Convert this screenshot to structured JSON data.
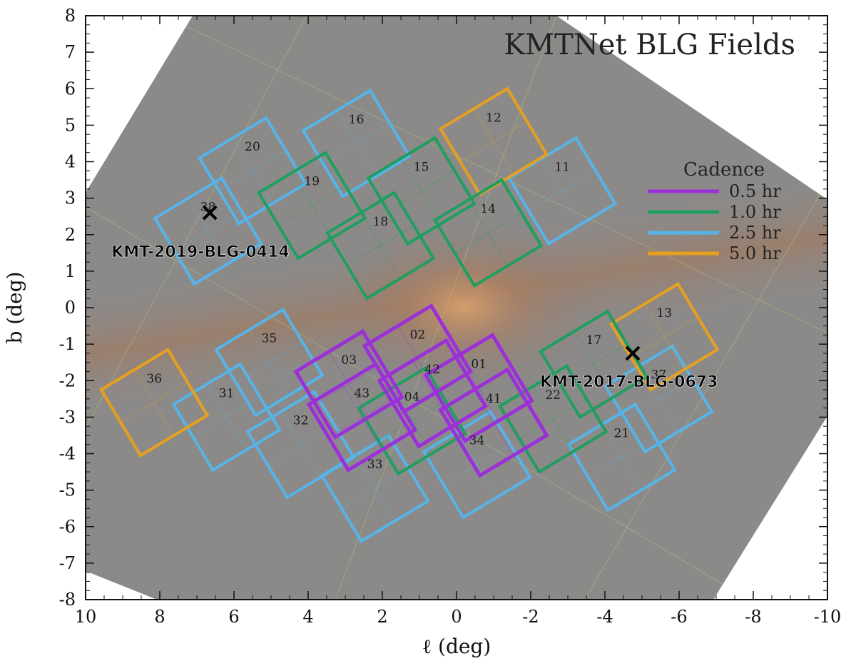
{
  "chart_data": {
    "type": "scatter",
    "title": "KMTNet BLG Fields",
    "xlabel": "ℓ (deg)",
    "ylabel": "b (deg)",
    "xlim": [
      10,
      -10
    ],
    "ylim": [
      -8,
      8
    ],
    "xticks": [
      "10",
      "8",
      "6",
      "4",
      "2",
      "0",
      "-2",
      "-4",
      "-6",
      "-8",
      "-10"
    ],
    "yticks": [
      "8",
      "7",
      "6",
      "5",
      "4",
      "3",
      "2",
      "1",
      "0",
      "-1",
      "-2",
      "-3",
      "-4",
      "-5",
      "-6",
      "-7",
      "-8"
    ],
    "legend": {
      "title": "Cadence",
      "placement": "right",
      "entries": [
        {
          "label": "0.5 hr",
          "color": "#9b30d9"
        },
        {
          "label": "1.0 hr",
          "color": "#1e9e5f"
        },
        {
          "label": "2.5 hr",
          "color": "#56b4e9"
        },
        {
          "label": "5.0 hr",
          "color": "#e6a020"
        }
      ]
    },
    "fields": [
      {
        "name": "01",
        "l": -0.6,
        "b": -2.2,
        "cadence": "0.5 hr"
      },
      {
        "name": "02",
        "l": 1.05,
        "b": -1.4,
        "cadence": "0.5 hr"
      },
      {
        "name": "03",
        "l": 2.9,
        "b": -2.1,
        "cadence": "0.5 hr"
      },
      {
        "name": "41",
        "l": -1.0,
        "b": -3.15,
        "cadence": "0.5 hr"
      },
      {
        "name": "42",
        "l": 0.65,
        "b": -2.35,
        "cadence": "0.5 hr"
      },
      {
        "name": "43",
        "l": 2.55,
        "b": -3.0,
        "cadence": "0.5 hr"
      },
      {
        "name": "04",
        "l": 1.2,
        "b": -3.1,
        "cadence": "1.0 hr"
      },
      {
        "name": "14",
        "l": -0.85,
        "b": 2.05,
        "cadence": "1.0 hr"
      },
      {
        "name": "15",
        "l": 0.95,
        "b": 3.2,
        "cadence": "1.0 hr"
      },
      {
        "name": "17",
        "l": -3.7,
        "b": -1.55,
        "cadence": "1.0 hr"
      },
      {
        "name": "18",
        "l": 2.05,
        "b": 1.7,
        "cadence": "1.0 hr"
      },
      {
        "name": "19",
        "l": 3.9,
        "b": 2.8,
        "cadence": "1.0 hr"
      },
      {
        "name": "22",
        "l": -2.6,
        "b": -3.05,
        "cadence": "1.0 hr"
      },
      {
        "name": "11",
        "l": -2.85,
        "b": 3.2,
        "cadence": "2.5 hr"
      },
      {
        "name": "16",
        "l": 2.7,
        "b": 4.5,
        "cadence": "2.5 hr"
      },
      {
        "name": "20",
        "l": 5.5,
        "b": 3.75,
        "cadence": "2.5 hr"
      },
      {
        "name": "21",
        "l": -4.45,
        "b": -4.1,
        "cadence": "2.5 hr"
      },
      {
        "name": "31",
        "l": 6.2,
        "b": -3.0,
        "cadence": "2.5 hr"
      },
      {
        "name": "32",
        "l": 4.2,
        "b": -3.75,
        "cadence": "2.5 hr"
      },
      {
        "name": "33",
        "l": 2.2,
        "b": -4.95,
        "cadence": "2.5 hr"
      },
      {
        "name": "34",
        "l": -0.55,
        "b": -4.3,
        "cadence": "2.5 hr"
      },
      {
        "name": "35",
        "l": 5.05,
        "b": -1.5,
        "cadence": "2.5 hr"
      },
      {
        "name": "37",
        "l": -5.45,
        "b": -2.5,
        "cadence": "2.5 hr"
      },
      {
        "name": "38",
        "l": 6.7,
        "b": 2.1,
        "cadence": "2.5 hr"
      },
      {
        "name": "12",
        "l": -1.0,
        "b": 4.55,
        "cadence": "5.0 hr"
      },
      {
        "name": "13",
        "l": -5.6,
        "b": -0.8,
        "cadence": "5.0 hr"
      },
      {
        "name": "36",
        "l": 8.15,
        "b": -2.6,
        "cadence": "5.0 hr"
      }
    ],
    "events": [
      {
        "name": "KMT-2019-BLG-0414",
        "l": 6.65,
        "b": 2.6
      },
      {
        "name": "KMT-2017-BLG-0673",
        "l": -4.75,
        "b": -1.25
      }
    ]
  }
}
